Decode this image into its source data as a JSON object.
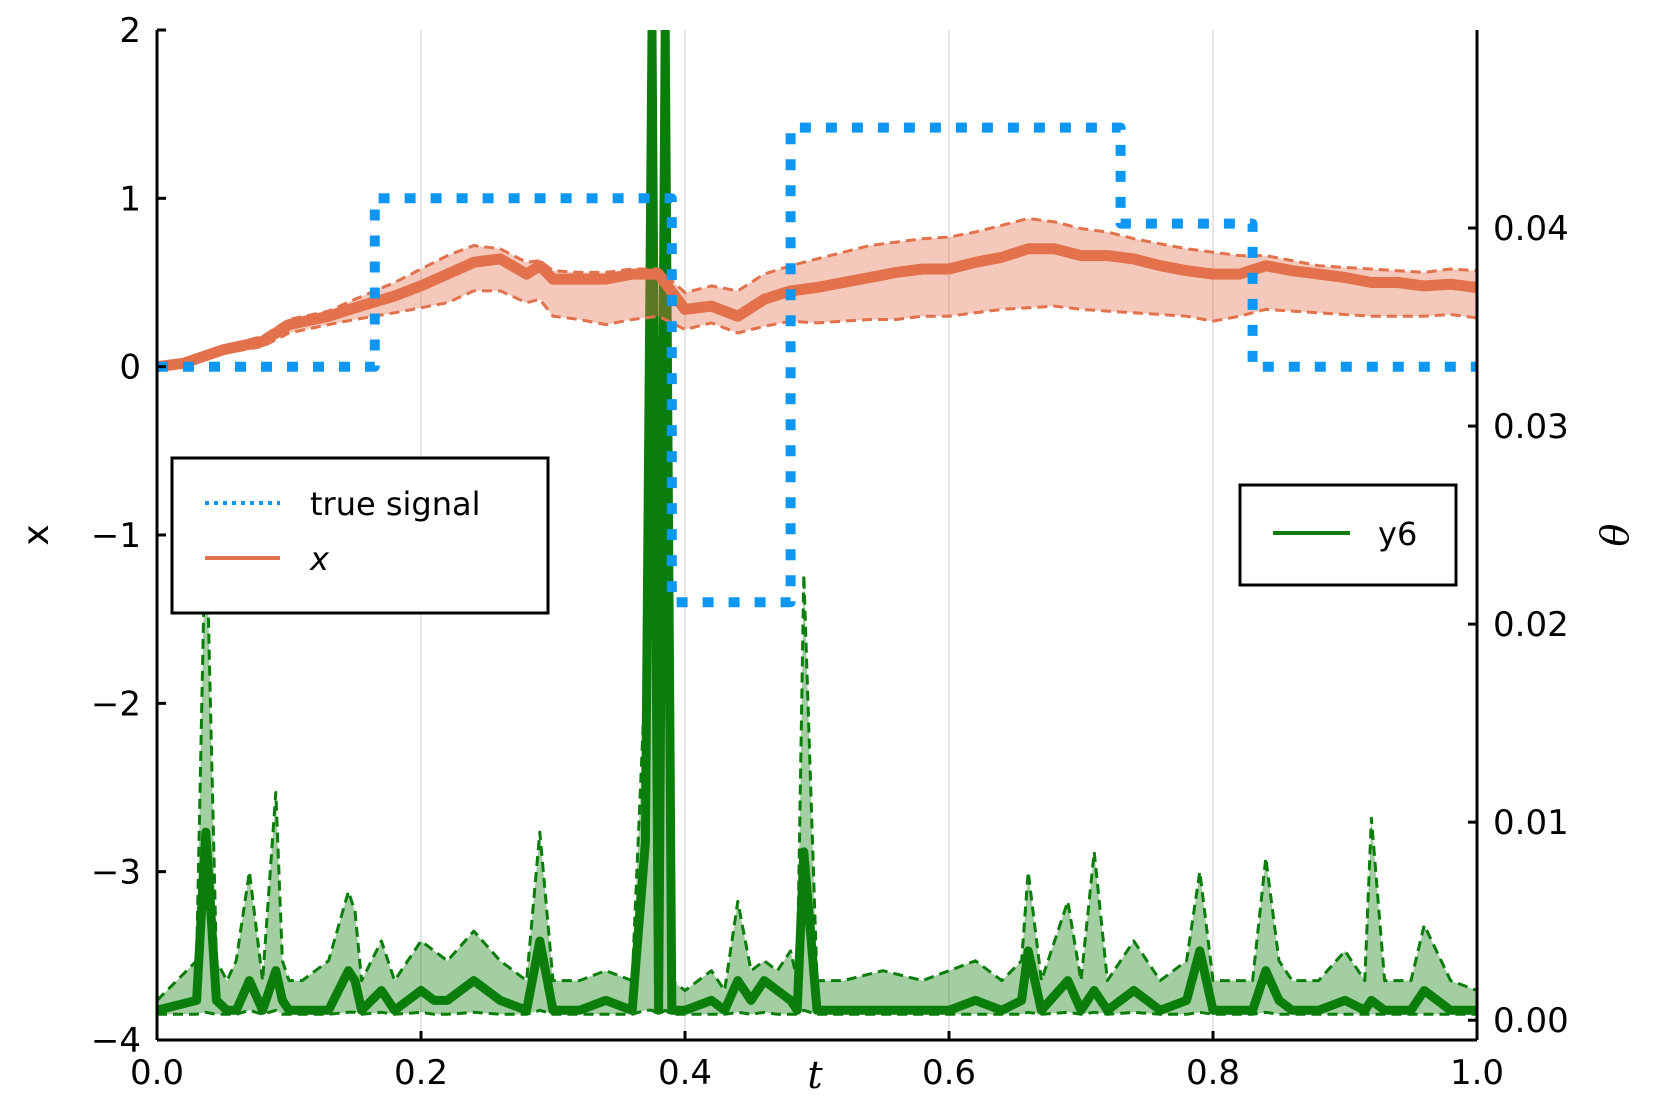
{
  "chart_data": {
    "type": "line",
    "x_axis": {
      "label": "t",
      "range": [
        0.0,
        1.0
      ],
      "ticks": [
        0.0,
        0.2,
        0.4,
        0.6,
        0.8,
        1.0
      ],
      "tick_labels": [
        "0.0",
        "0.2",
        "0.4",
        "0.6",
        "0.8",
        "1.0"
      ],
      "grid": true
    },
    "y_left_axis": {
      "label": "x",
      "range": [
        -4,
        2
      ],
      "ticks": [
        -4,
        -3,
        -2,
        -1,
        0,
        1,
        2
      ],
      "tick_labels": [
        "−4",
        "−3",
        "−2",
        "−1",
        "0",
        "1",
        "2"
      ]
    },
    "y_right_axis": {
      "label": "θ",
      "range": [
        -0.001,
        0.05
      ],
      "ticks": [
        0.0,
        0.01,
        0.02,
        0.03,
        0.04
      ],
      "tick_labels": [
        "0.00",
        "0.01",
        "0.02",
        "0.03",
        "0.04"
      ]
    },
    "legend_left": {
      "position": "left-middle",
      "entries": [
        {
          "label": "true signal",
          "style": "dotted",
          "color": "#0e97f2"
        },
        {
          "label": "x",
          "style": "solid",
          "color": "#e2714c",
          "italic": true
        }
      ]
    },
    "legend_right": {
      "position": "right-middle",
      "entries": [
        {
          "label": "y6",
          "style": "solid",
          "color": "#0a7d0a"
        }
      ]
    },
    "series": [
      {
        "name": "true signal",
        "axis": "left",
        "style": "dotted-step",
        "color": "#0e97f2",
        "x": [
          0.0,
          0.165,
          0.165,
          0.39,
          0.39,
          0.48,
          0.48,
          0.73,
          0.73,
          0.83,
          0.83,
          1.0
        ],
        "y": [
          0.0,
          0.0,
          1.0,
          1.0,
          -1.4,
          -1.4,
          1.42,
          1.42,
          0.85,
          0.85,
          0.0,
          0.0
        ]
      },
      {
        "name": "x",
        "axis": "left",
        "color": "#e2714c",
        "x": [
          0.0,
          0.02,
          0.05,
          0.08,
          0.1,
          0.13,
          0.15,
          0.18,
          0.2,
          0.22,
          0.24,
          0.26,
          0.28,
          0.29,
          0.3,
          0.32,
          0.34,
          0.36,
          0.38,
          0.4,
          0.42,
          0.44,
          0.46,
          0.48,
          0.5,
          0.52,
          0.54,
          0.56,
          0.58,
          0.6,
          0.62,
          0.64,
          0.66,
          0.68,
          0.7,
          0.72,
          0.74,
          0.76,
          0.78,
          0.8,
          0.82,
          0.84,
          0.86,
          0.88,
          0.9,
          0.92,
          0.94,
          0.96,
          0.98,
          1.0
        ],
        "y": [
          0.0,
          0.02,
          0.1,
          0.15,
          0.25,
          0.3,
          0.35,
          0.42,
          0.48,
          0.55,
          0.62,
          0.64,
          0.55,
          0.6,
          0.52,
          0.52,
          0.52,
          0.55,
          0.55,
          0.34,
          0.36,
          0.3,
          0.4,
          0.45,
          0.47,
          0.5,
          0.53,
          0.56,
          0.58,
          0.58,
          0.62,
          0.65,
          0.7,
          0.7,
          0.66,
          0.66,
          0.64,
          0.6,
          0.57,
          0.55,
          0.55,
          0.6,
          0.57,
          0.55,
          0.53,
          0.5,
          0.5,
          0.48,
          0.49,
          0.47
        ],
        "band_upper": [
          0.0,
          0.03,
          0.12,
          0.18,
          0.28,
          0.33,
          0.4,
          0.5,
          0.58,
          0.66,
          0.72,
          0.7,
          0.62,
          0.63,
          0.57,
          0.56,
          0.56,
          0.58,
          0.58,
          0.44,
          0.48,
          0.45,
          0.55,
          0.6,
          0.64,
          0.68,
          0.72,
          0.74,
          0.76,
          0.77,
          0.8,
          0.84,
          0.88,
          0.86,
          0.82,
          0.8,
          0.76,
          0.73,
          0.7,
          0.68,
          0.66,
          0.66,
          0.63,
          0.6,
          0.59,
          0.58,
          0.57,
          0.56,
          0.58,
          0.57
        ],
        "band_lower": [
          0.0,
          0.01,
          0.08,
          0.12,
          0.2,
          0.25,
          0.28,
          0.32,
          0.35,
          0.38,
          0.45,
          0.45,
          0.38,
          0.4,
          0.3,
          0.28,
          0.25,
          0.28,
          0.3,
          0.22,
          0.26,
          0.2,
          0.24,
          0.27,
          0.26,
          0.27,
          0.28,
          0.28,
          0.3,
          0.3,
          0.32,
          0.34,
          0.35,
          0.36,
          0.34,
          0.33,
          0.32,
          0.31,
          0.3,
          0.27,
          0.3,
          0.34,
          0.33,
          0.32,
          0.31,
          0.3,
          0.3,
          0.3,
          0.31,
          0.29
        ]
      },
      {
        "name": "y6",
        "axis": "right",
        "color": "#0a7d0a",
        "x": [
          0.0,
          0.03,
          0.037,
          0.045,
          0.053,
          0.06,
          0.07,
          0.08,
          0.09,
          0.095,
          0.1,
          0.11,
          0.13,
          0.145,
          0.15,
          0.155,
          0.17,
          0.18,
          0.2,
          0.21,
          0.22,
          0.24,
          0.26,
          0.28,
          0.29,
          0.3,
          0.32,
          0.34,
          0.36,
          0.37,
          0.375,
          0.38,
          0.385,
          0.39,
          0.4,
          0.42,
          0.43,
          0.44,
          0.45,
          0.46,
          0.47,
          0.48,
          0.485,
          0.49,
          0.5,
          0.52,
          0.55,
          0.58,
          0.6,
          0.62,
          0.64,
          0.655,
          0.66,
          0.67,
          0.69,
          0.7,
          0.71,
          0.72,
          0.74,
          0.76,
          0.78,
          0.79,
          0.8,
          0.82,
          0.83,
          0.84,
          0.85,
          0.86,
          0.88,
          0.9,
          0.915,
          0.92,
          0.93,
          0.95,
          0.96,
          0.98,
          1.0
        ],
        "y": [
          0.0005,
          0.001,
          0.0095,
          0.001,
          0.0005,
          0.0005,
          0.002,
          0.0005,
          0.0025,
          0.001,
          0.0005,
          0.0005,
          0.0005,
          0.0025,
          0.002,
          0.0005,
          0.0015,
          0.0005,
          0.0015,
          0.001,
          0.001,
          0.002,
          0.001,
          0.0005,
          0.004,
          0.0005,
          0.0005,
          0.001,
          0.0005,
          0.009,
          0.05,
          0.0005,
          0.05,
          0.0005,
          0.0005,
          0.001,
          0.0005,
          0.002,
          0.001,
          0.002,
          0.0015,
          0.001,
          0.0005,
          0.0085,
          0.0005,
          0.0005,
          0.0005,
          0.0005,
          0.0005,
          0.001,
          0.0005,
          0.001,
          0.0035,
          0.0005,
          0.002,
          0.0005,
          0.0015,
          0.0005,
          0.0015,
          0.0005,
          0.001,
          0.0035,
          0.0005,
          0.0005,
          0.0005,
          0.0025,
          0.001,
          0.0005,
          0.0005,
          0.001,
          0.0005,
          0.001,
          0.0005,
          0.0005,
          0.0015,
          0.0005,
          0.0005
        ],
        "band_upper": [
          0.001,
          0.003,
          0.026,
          0.003,
          0.002,
          0.003,
          0.0075,
          0.002,
          0.0115,
          0.003,
          0.002,
          0.002,
          0.003,
          0.0065,
          0.0055,
          0.002,
          0.004,
          0.002,
          0.004,
          0.0035,
          0.003,
          0.0045,
          0.003,
          0.002,
          0.0095,
          0.002,
          0.002,
          0.0025,
          0.002,
          0.0175,
          0.05,
          0.002,
          0.05,
          0.002,
          0.0015,
          0.0025,
          0.0015,
          0.006,
          0.0025,
          0.003,
          0.0025,
          0.0035,
          0.002,
          0.0225,
          0.002,
          0.002,
          0.0025,
          0.002,
          0.0025,
          0.003,
          0.002,
          0.003,
          0.0075,
          0.002,
          0.006,
          0.002,
          0.0085,
          0.002,
          0.004,
          0.002,
          0.003,
          0.0075,
          0.002,
          0.002,
          0.002,
          0.0082,
          0.003,
          0.002,
          0.002,
          0.0035,
          0.002,
          0.0102,
          0.002,
          0.002,
          0.0048,
          0.002,
          0.0015
        ],
        "band_lower": [
          0.0003,
          0.0003,
          0.0004,
          0.0003,
          0.0003,
          0.0003,
          0.0005,
          0.0003,
          0.0005,
          0.0003,
          0.0003,
          0.0003,
          0.0003,
          0.0004,
          0.0004,
          0.0003,
          0.0004,
          0.0003,
          0.0004,
          0.0003,
          0.0003,
          0.0004,
          0.0003,
          0.0003,
          0.0005,
          0.0003,
          0.0003,
          0.0003,
          0.0003,
          0.0005,
          0.0005,
          0.0003,
          0.0005,
          0.0003,
          0.0003,
          0.0003,
          0.0003,
          0.0004,
          0.0003,
          0.0004,
          0.0003,
          0.0003,
          0.0003,
          0.0005,
          0.0003,
          0.0003,
          0.0003,
          0.0003,
          0.0003,
          0.0003,
          0.0003,
          0.0003,
          0.0004,
          0.0003,
          0.0004,
          0.0003,
          0.0004,
          0.0003,
          0.0004,
          0.0003,
          0.0003,
          0.0004,
          0.0003,
          0.0003,
          0.0003,
          0.0004,
          0.0003,
          0.0003,
          0.0003,
          0.0003,
          0.0003,
          0.0003,
          0.0003,
          0.0003,
          0.0003,
          0.0003,
          0.0003
        ]
      }
    ]
  }
}
